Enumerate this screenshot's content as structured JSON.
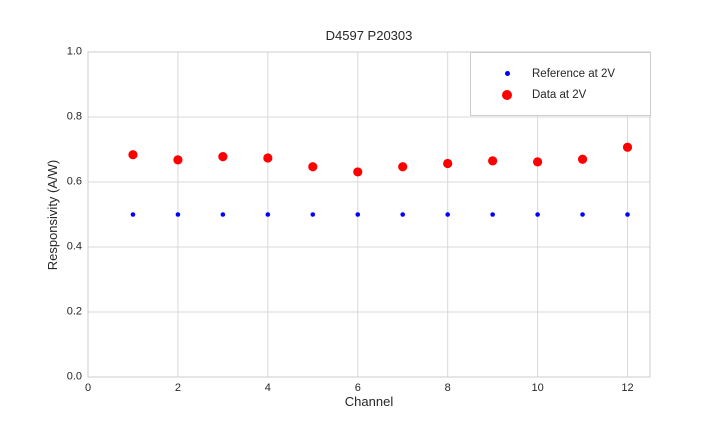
{
  "colors": {
    "background": "#ffffff",
    "grid": "#d9d9d9",
    "spine": "#cccccc",
    "text": "#262626"
  },
  "chart_data": {
    "type": "scatter",
    "title": "D4597 P20303",
    "xlabel": "Channel",
    "ylabel": "Responsivity (A/W)",
    "xlim": [
      0,
      12.5
    ],
    "ylim": [
      0.0,
      1.0
    ],
    "x_ticks": [
      0,
      2,
      4,
      6,
      8,
      10,
      12
    ],
    "y_ticks": [
      0.0,
      0.2,
      0.4,
      0.6,
      0.8,
      1.0
    ],
    "grid": true,
    "legend_position": "upper-right",
    "x": [
      1,
      2,
      3,
      4,
      5,
      6,
      7,
      8,
      9,
      10,
      11,
      12
    ],
    "series": [
      {
        "name": "Reference at 2V",
        "color": "#0000ff",
        "marker_radius": 2.3,
        "values": [
          0.5,
          0.5,
          0.5,
          0.5,
          0.5,
          0.5,
          0.5,
          0.5,
          0.5,
          0.5,
          0.5,
          0.5
        ]
      },
      {
        "name": "Data at 2V",
        "color": "#ff0000",
        "marker_radius": 4.6,
        "values": [
          0.684,
          0.668,
          0.678,
          0.674,
          0.647,
          0.631,
          0.647,
          0.657,
          0.665,
          0.662,
          0.67,
          0.707
        ]
      }
    ]
  }
}
